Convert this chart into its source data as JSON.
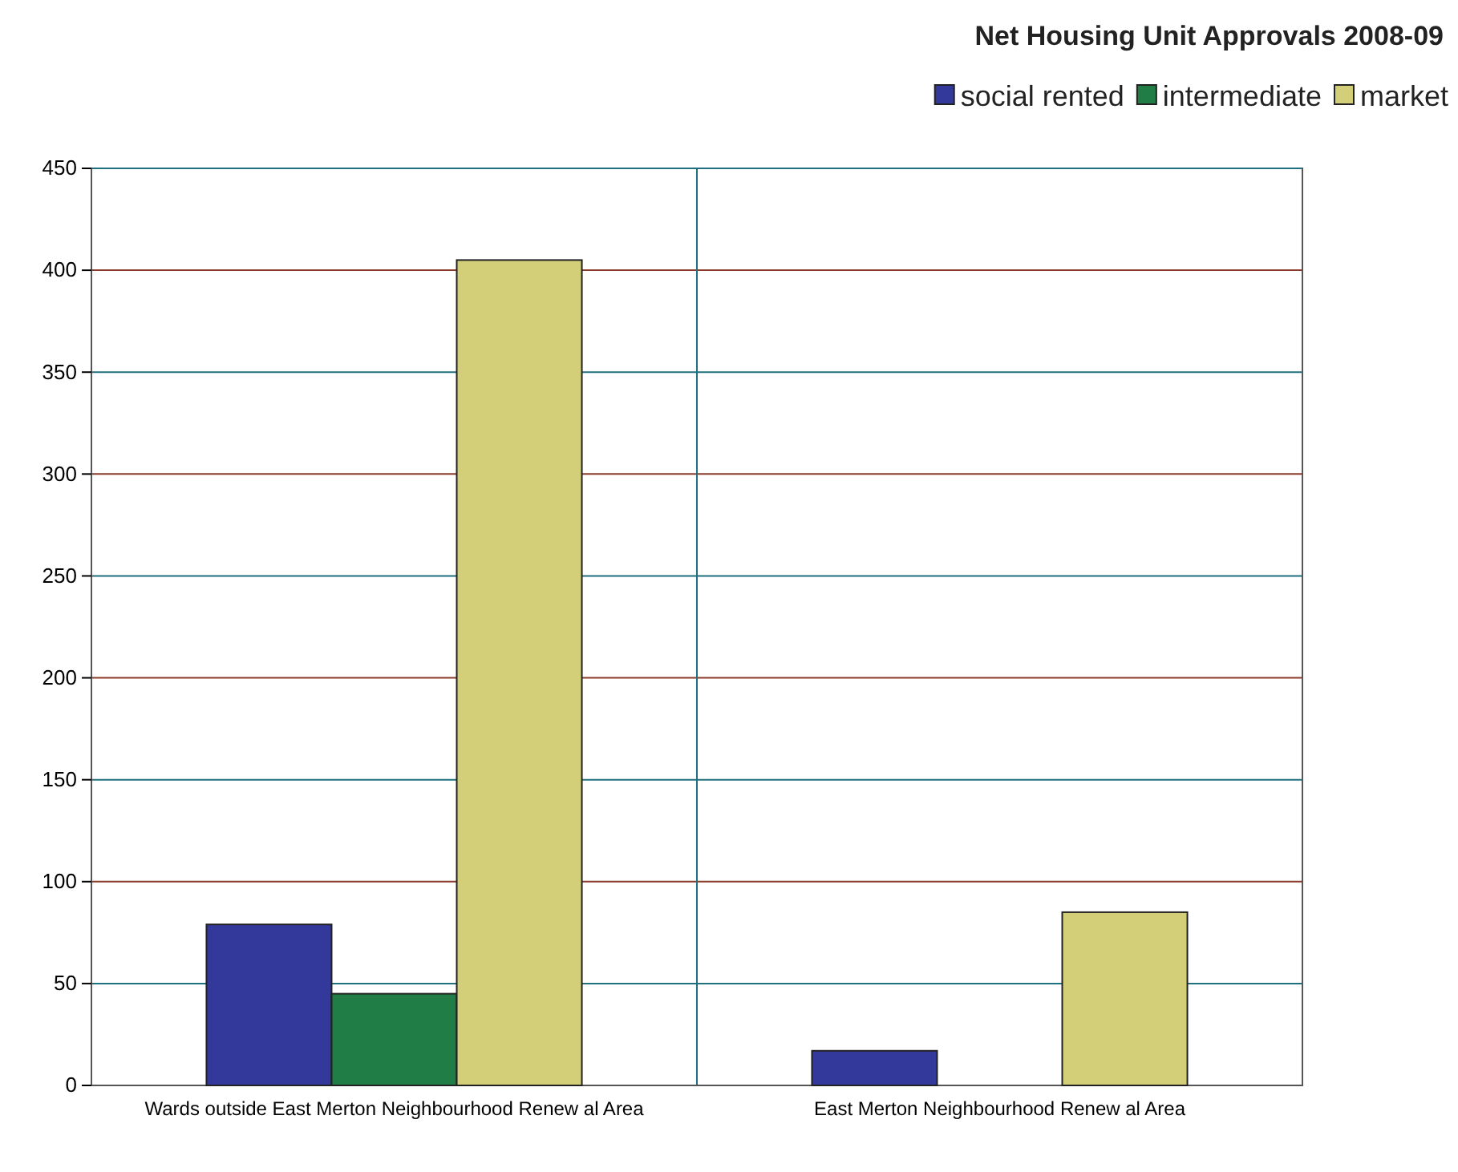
{
  "chart_data": {
    "type": "bar",
    "title": "Net Housing Unit Approvals 2008-09",
    "categories": [
      "Wards outside East Merton Neighbourhood Renew al Area",
      "East Merton Neighbourhood Renew al Area"
    ],
    "series": [
      {
        "name": "social rented",
        "color": "#33399a",
        "values": [
          79,
          17
        ]
      },
      {
        "name": "intermediate",
        "color": "#1f7d45",
        "values": [
          45,
          null
        ]
      },
      {
        "name": "market",
        "color": "#d2cf78",
        "values": [
          405,
          85
        ]
      }
    ],
    "ylim": [
      0,
      450
    ],
    "yticks": [
      0,
      50,
      100,
      150,
      200,
      250,
      300,
      350,
      400,
      450
    ],
    "grid": "y",
    "legend": "top right"
  }
}
